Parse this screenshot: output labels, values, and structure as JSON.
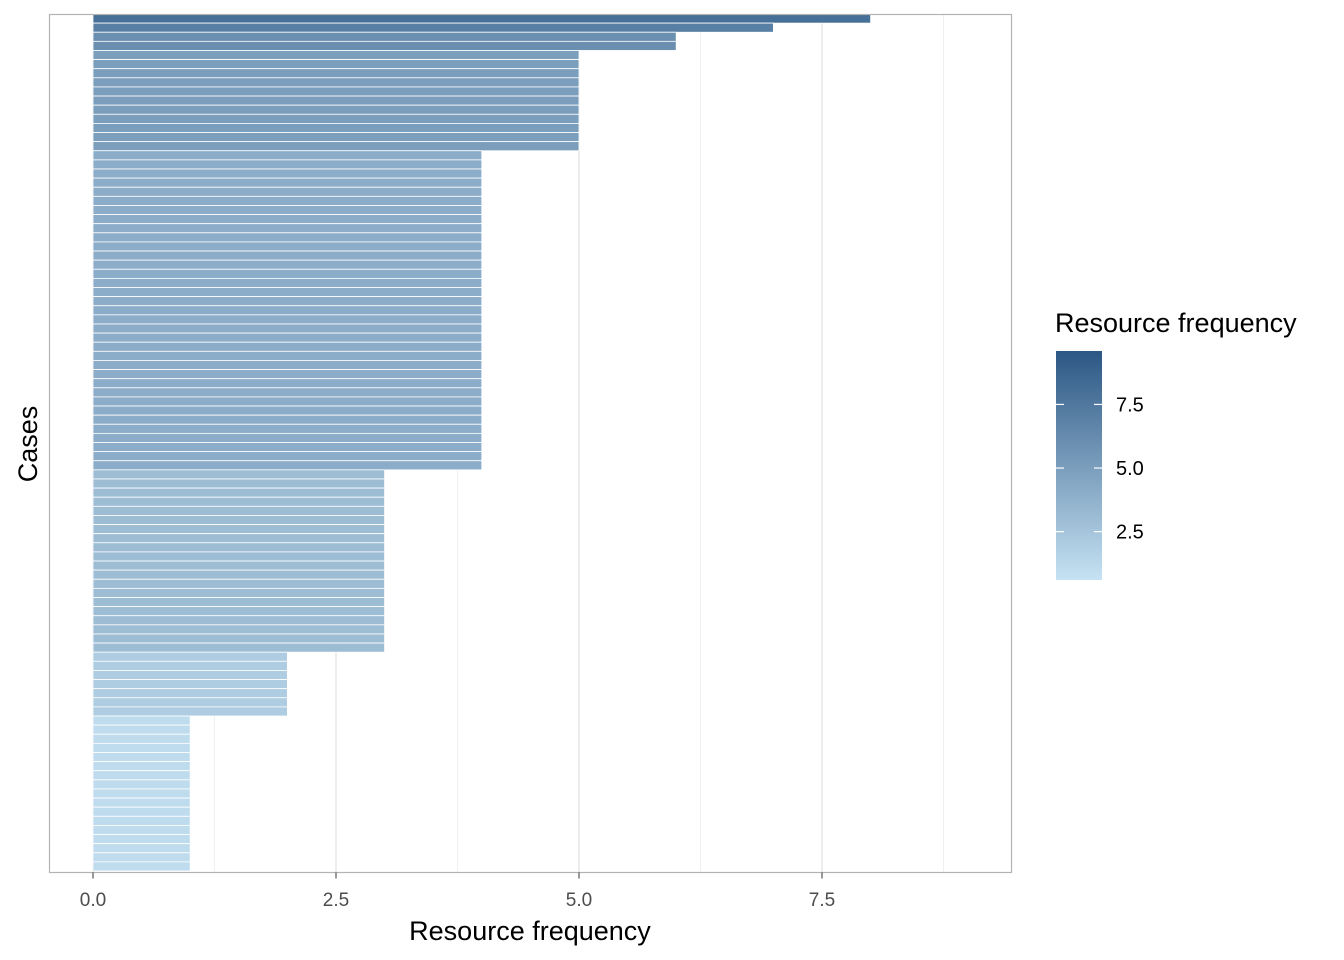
{
  "chart_data": {
    "type": "bar",
    "orientation": "horizontal",
    "xlabel": "Resource frequency",
    "ylabel": "Cases",
    "xlim": [
      -1.5,
      10.0
    ],
    "xticks": [
      "0.0",
      "2.5",
      "5.0",
      "7.5"
    ],
    "xtick_values": [
      0,
      2.5,
      5,
      7.5
    ],
    "y_tick_labels": "none",
    "grid": "vertical major and minor lines, light grey",
    "fill_scale": {
      "low_color": "#c6e2f3",
      "high_color": "#2c5784",
      "domain": [
        0.6,
        9.6
      ]
    },
    "legend": {
      "title": "Resource frequency",
      "placement": "right",
      "type": "colorbar",
      "labels": [
        "7.5",
        "5.0",
        "2.5"
      ],
      "values": [
        7.5,
        5.0,
        2.5
      ]
    },
    "value_counts": [
      {
        "value": 8,
        "cases": 1
      },
      {
        "value": 7,
        "cases": 1
      },
      {
        "value": 6,
        "cases": 2
      },
      {
        "value": 5,
        "cases": 11
      },
      {
        "value": 4,
        "cases": 35
      },
      {
        "value": 3,
        "cases": 20
      },
      {
        "value": 2,
        "cases": 7
      },
      {
        "value": 1,
        "cases": 17
      }
    ],
    "values": [
      8,
      7,
      6,
      6,
      5,
      5,
      5,
      5,
      5,
      5,
      5,
      5,
      5,
      5,
      5,
      4,
      4,
      4,
      4,
      4,
      4,
      4,
      4,
      4,
      4,
      4,
      4,
      4,
      4,
      4,
      4,
      4,
      4,
      4,
      4,
      4,
      4,
      4,
      4,
      4,
      4,
      4,
      4,
      4,
      4,
      4,
      4,
      4,
      4,
      4,
      3,
      3,
      3,
      3,
      3,
      3,
      3,
      3,
      3,
      3,
      3,
      3,
      3,
      3,
      3,
      3,
      3,
      3,
      3,
      3,
      2,
      2,
      2,
      2,
      2,
      2,
      2,
      1,
      1,
      1,
      1,
      1,
      1,
      1,
      1,
      1,
      1,
      1,
      1,
      1,
      1,
      1,
      1,
      1
    ]
  },
  "colors": {
    "panel_border": "#b3b3b3",
    "grid_major": "#dedede",
    "grid_minor": "#efefef",
    "bar_separator": "#ffffff"
  }
}
